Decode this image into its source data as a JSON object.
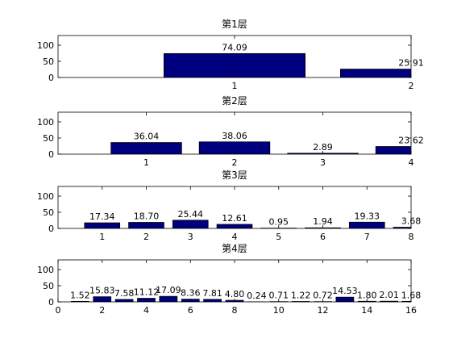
{
  "chart_data": [
    {
      "type": "bar",
      "title": "第1层",
      "x": [
        1,
        2
      ],
      "values": [
        74.09,
        25.91
      ],
      "value_labels": [
        "74.09",
        "25.91"
      ],
      "color": "#00007f",
      "xlim": [
        0,
        2
      ],
      "ylim": [
        0,
        130
      ],
      "xticks": [
        1,
        2
      ],
      "yticks": [
        0,
        50,
        100
      ]
    },
    {
      "type": "bar",
      "title": "第2层",
      "x": [
        1,
        2,
        3,
        4
      ],
      "values": [
        36.04,
        38.06,
        2.89,
        23.62
      ],
      "value_labels": [
        "36.04",
        "38.06",
        "2.89",
        "23.62"
      ],
      "color": "#00007f",
      "xlim": [
        0,
        4
      ],
      "ylim": [
        0,
        130
      ],
      "xticks": [
        1,
        2,
        3,
        4
      ],
      "yticks": [
        0,
        50,
        100
      ]
    },
    {
      "type": "bar",
      "title": "第3层",
      "x": [
        1,
        2,
        3,
        4,
        5,
        6,
        7,
        8
      ],
      "values": [
        17.34,
        18.7,
        25.44,
        12.61,
        0.95,
        1.94,
        19.33,
        3.68
      ],
      "value_labels": [
        "17.34",
        "18.70",
        "25.44",
        "12.61",
        "0.95",
        "1.94",
        "19.33",
        "3.68"
      ],
      "color": "#00007f",
      "xlim": [
        0,
        8
      ],
      "ylim": [
        0,
        130
      ],
      "xticks": [
        1,
        2,
        3,
        4,
        5,
        6,
        7,
        8
      ],
      "yticks": [
        0,
        50,
        100
      ]
    },
    {
      "type": "bar",
      "title": "第4层",
      "x": [
        1,
        2,
        3,
        4,
        5,
        6,
        7,
        8,
        9,
        10,
        11,
        12,
        13,
        14,
        15,
        16
      ],
      "values": [
        1.52,
        15.83,
        7.58,
        11.12,
        17.09,
        8.36,
        7.81,
        4.8,
        0.24,
        0.71,
        1.22,
        0.72,
        14.53,
        1.8,
        2.01,
        1.68
      ],
      "value_labels": [
        "1.52",
        "15.83",
        "7.58",
        "11.12",
        "17.09",
        "8.36",
        "7.81",
        "4.80",
        "0.24",
        "0.71",
        "1.22",
        "0.72",
        "14.53",
        "1.80",
        "2.01",
        "1.68"
      ],
      "color": "#00007f",
      "xlim": [
        0,
        16
      ],
      "ylim": [
        0,
        130
      ],
      "xticks": [
        0,
        2,
        4,
        6,
        8,
        10,
        12,
        14,
        16
      ],
      "yticks": [
        0,
        50,
        100
      ]
    }
  ]
}
